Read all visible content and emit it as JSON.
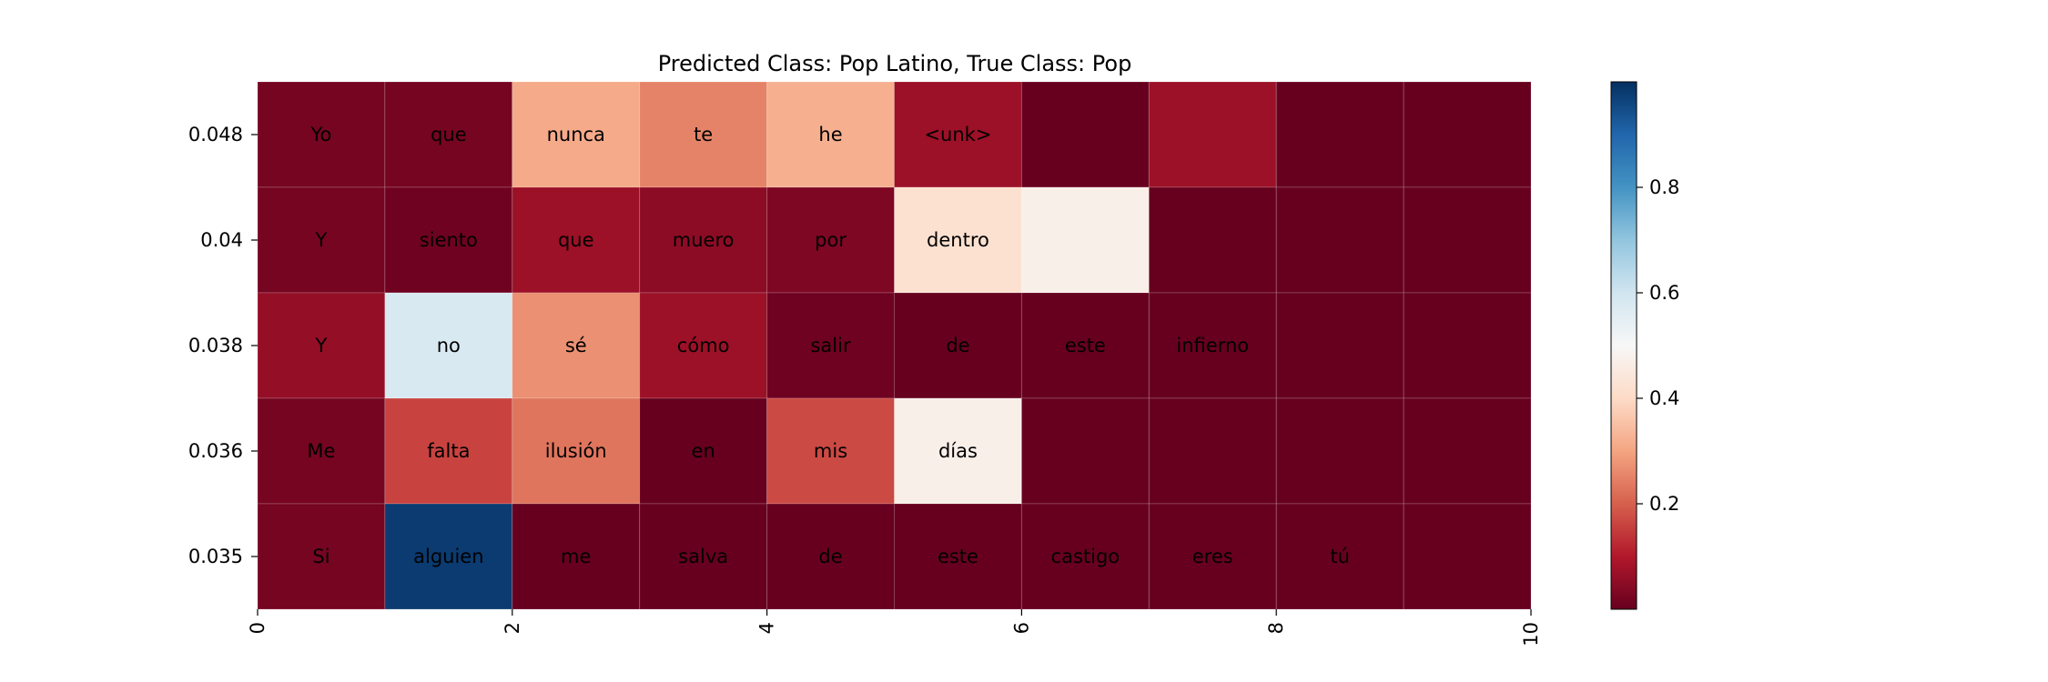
{
  "chart_data": {
    "type": "heatmap",
    "title": "Predicted Class: Pop Latino, True Class: Pop",
    "xlabel": "",
    "ylabel": "",
    "x_ticks": [
      "0",
      "2",
      "4",
      "6",
      "8",
      "10"
    ],
    "xlim": [
      0,
      10
    ],
    "row_labels": [
      "0.048",
      "0.04",
      "0.038",
      "0.036",
      "0.035"
    ],
    "rows": [
      {
        "words": [
          "Yo",
          "que",
          "nunca",
          "te",
          "he",
          "<unk>",
          "",
          "",
          "",
          ""
        ],
        "values": [
          0.02,
          0.02,
          0.31,
          0.25,
          0.32,
          0.07,
          0.0,
          0.07,
          0.0,
          0.0
        ]
      },
      {
        "words": [
          "Y",
          "siento",
          "que",
          "muero",
          "por",
          "dentro",
          "",
          "",
          "",
          ""
        ],
        "values": [
          0.02,
          0.01,
          0.07,
          0.05,
          0.03,
          0.42,
          0.47,
          0.0,
          0.0,
          0.0
        ]
      },
      {
        "words": [
          "Y",
          "no",
          "sé",
          "cómo",
          "salir",
          "de",
          "este",
          "infierno",
          "",
          ""
        ],
        "values": [
          0.06,
          0.58,
          0.27,
          0.07,
          0.01,
          0.0,
          0.0,
          0.0,
          0.0,
          0.0
        ]
      },
      {
        "words": [
          "Me",
          "falta",
          "ilusión",
          "en",
          "mis",
          "días",
          "",
          "",
          "",
          ""
        ],
        "values": [
          0.02,
          0.16,
          0.23,
          0.0,
          0.17,
          0.47,
          0.0,
          0.0,
          0.0,
          0.0
        ]
      },
      {
        "words": [
          "Si",
          "alguien",
          "me",
          "salva",
          "de",
          "este",
          "castigo",
          "eres",
          "tú",
          ""
        ],
        "values": [
          0.02,
          0.98,
          0.0,
          0.0,
          0.0,
          0.0,
          0.0,
          0.0,
          0.0,
          0.0
        ]
      }
    ],
    "colorbar": {
      "colormap": "RdBu",
      "range": [
        0,
        1
      ],
      "ticks": [
        "0.2",
        "0.4",
        "0.6",
        "0.8"
      ],
      "tick_values": [
        0.2,
        0.4,
        0.6,
        0.8
      ]
    },
    "grid": true
  }
}
